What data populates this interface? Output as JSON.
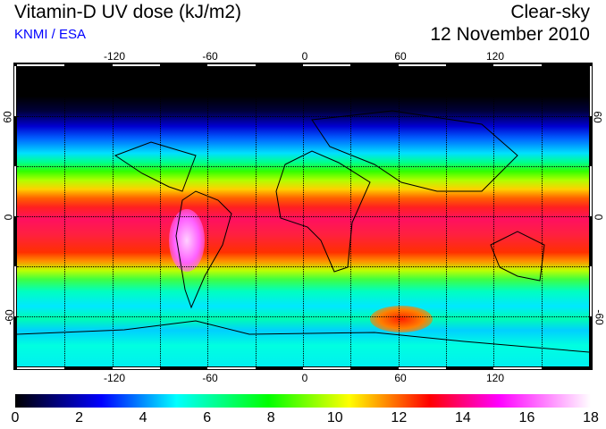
{
  "header": {
    "title": "Vitamin-D UV dose (kJ/m2)",
    "organization": "KNMI / ESA",
    "condition": "Clear-sky",
    "date": "12 November 2010"
  },
  "map": {
    "longitude_labels": [
      "-120",
      "-60",
      "0",
      "60",
      "120"
    ],
    "latitude_labels": [
      "60",
      "0",
      "-60"
    ],
    "grid_step_degrees": 30
  },
  "colorbar": {
    "labels": [
      "0",
      "2",
      "4",
      "6",
      "8",
      "10",
      "12",
      "14",
      "16",
      "18"
    ],
    "min": 0,
    "max": 18,
    "unit": "kJ/m2"
  },
  "colors": {
    "org_text": "#0000ff"
  }
}
